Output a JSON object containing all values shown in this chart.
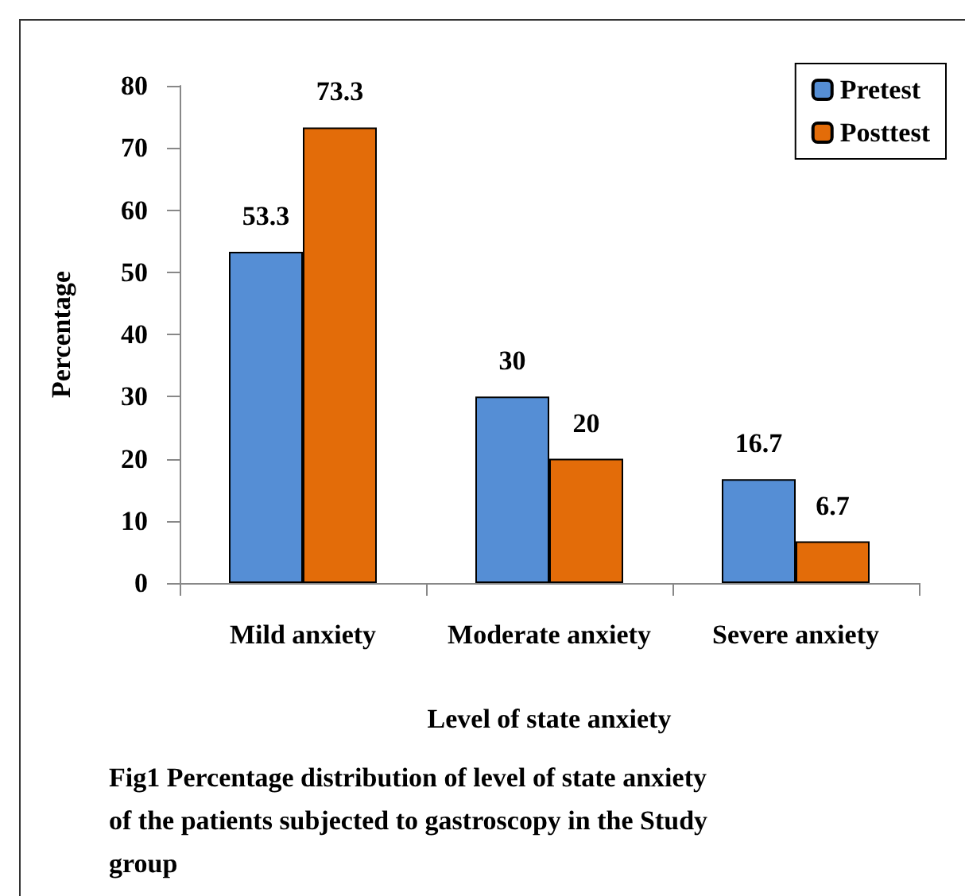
{
  "chart_data": {
    "type": "bar",
    "xlabel": "Level of state anxiety",
    "ylabel": "Percentage",
    "categories": [
      "Mild anxiety",
      "Moderate anxiety",
      "Severe anxiety"
    ],
    "series": [
      {
        "name": "Pretest",
        "color": "#558ed5",
        "values": [
          53.3,
          30,
          16.7
        ]
      },
      {
        "name": "Posttest",
        "color": "#e36c09",
        "values": [
          73.3,
          20,
          6.7
        ]
      }
    ],
    "ylim": [
      0,
      80
    ],
    "yticks": [
      0,
      10,
      20,
      30,
      40,
      50,
      60,
      70,
      80
    ],
    "grid": false,
    "legend": "top right",
    "data_labels": true,
    "annotations": [
      "Fig1 Percentage distribution of level of state anxiety of the patients subjected to gastroscopy in the Study group"
    ]
  }
}
